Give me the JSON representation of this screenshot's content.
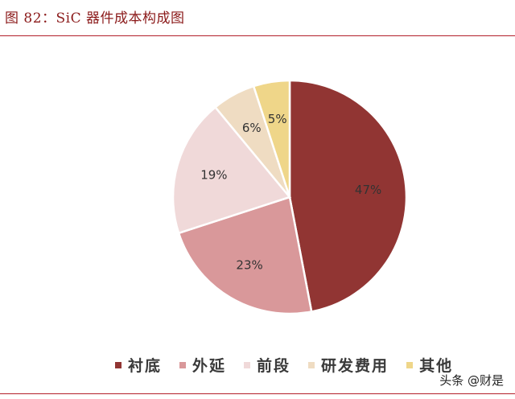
{
  "figure": {
    "title": "图 82：SiC 器件成本构成图"
  },
  "watermark": "头条 @财是",
  "colors": {
    "title": "#8b1a1a",
    "rule": "#b3202a",
    "label_text": "#333333"
  },
  "chart_data": {
    "type": "pie",
    "start_angle": "12 o'clock",
    "direction": "clockwise",
    "legend_position": "bottom",
    "slices": [
      {
        "label": "衬底",
        "value": 47,
        "display": "47%",
        "color": "#913533"
      },
      {
        "label": "外延",
        "value": 23,
        "display": "23%",
        "color": "#d9989a"
      },
      {
        "label": "前段",
        "value": 19,
        "display": "19%",
        "color": "#f0d9d9"
      },
      {
        "label": "研发费用",
        "value": 6,
        "display": "6%",
        "color": "#efdcc2"
      },
      {
        "label": "其他",
        "value": 5,
        "display": "5%",
        "color": "#efd689"
      }
    ]
  }
}
